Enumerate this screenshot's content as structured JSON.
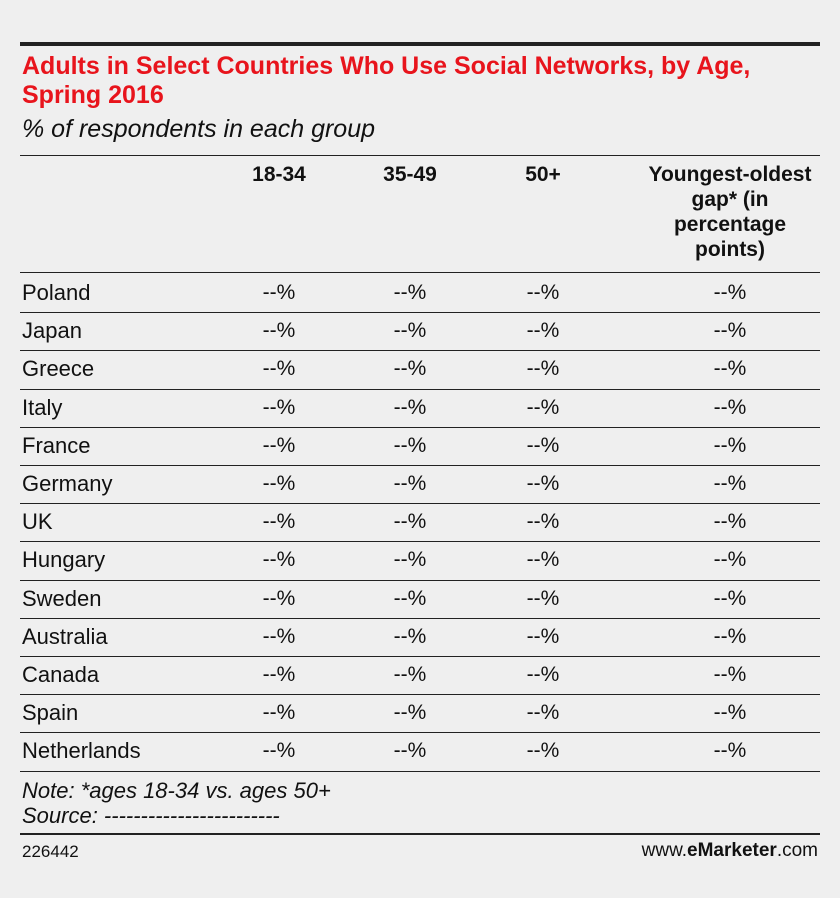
{
  "header": {
    "title": "Adults in Select Countries Who Use Social Networks, by Age, Spring 2016",
    "subtitle": "% of respondents in each group"
  },
  "table": {
    "columns": [
      "18-34",
      "35-49",
      "50+",
      "Youngest-oldest gap* (in percentage points)"
    ],
    "rows": [
      {
        "label": "Poland",
        "cells": [
          "--%",
          "--%",
          "--%",
          "--%"
        ]
      },
      {
        "label": "Japan",
        "cells": [
          "--%",
          "--%",
          "--%",
          "--%"
        ]
      },
      {
        "label": "Greece",
        "cells": [
          "--%",
          "--%",
          "--%",
          "--%"
        ]
      },
      {
        "label": "Italy",
        "cells": [
          "--%",
          "--%",
          "--%",
          "--%"
        ]
      },
      {
        "label": "France",
        "cells": [
          "--%",
          "--%",
          "--%",
          "--%"
        ]
      },
      {
        "label": "Germany",
        "cells": [
          "--%",
          "--%",
          "--%",
          "--%"
        ]
      },
      {
        "label": "UK",
        "cells": [
          "--%",
          "--%",
          "--%",
          "--%"
        ]
      },
      {
        "label": "Hungary",
        "cells": [
          "--%",
          "--%",
          "--%",
          "--%"
        ]
      },
      {
        "label": "Sweden",
        "cells": [
          "--%",
          "--%",
          "--%",
          "--%"
        ]
      },
      {
        "label": "Australia",
        "cells": [
          "--%",
          "--%",
          "--%",
          "--%"
        ]
      },
      {
        "label": "Canada",
        "cells": [
          "--%",
          "--%",
          "--%",
          "--%"
        ]
      },
      {
        "label": "Spain",
        "cells": [
          "--%",
          "--%",
          "--%",
          "--%"
        ]
      },
      {
        "label": "Netherlands",
        "cells": [
          "--%",
          "--%",
          "--%",
          "--%"
        ]
      }
    ]
  },
  "footer": {
    "note": "Note: *ages 18-34 vs. ages 50+",
    "source": "Source: ------------------------",
    "id": "226442",
    "brand": [
      "www.",
      "eMarketer",
      ".com"
    ]
  }
}
